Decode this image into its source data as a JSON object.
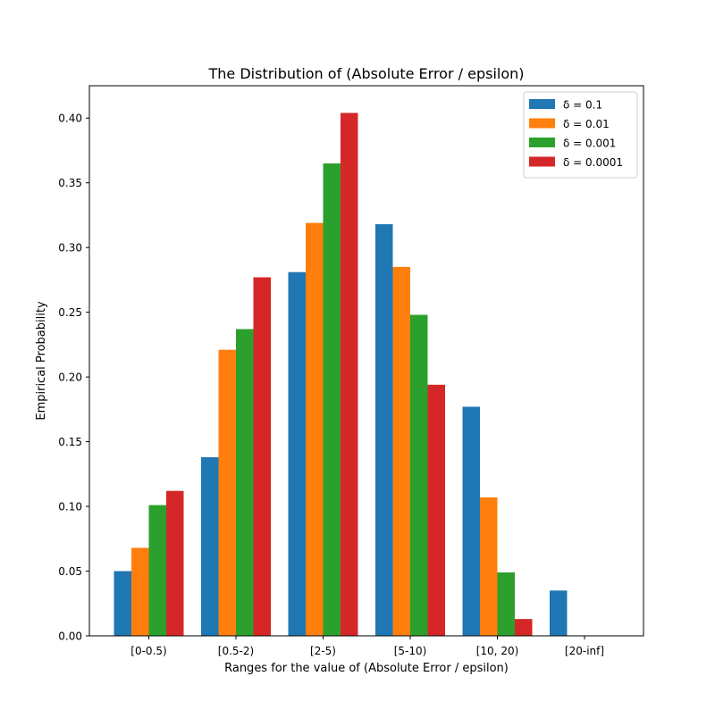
{
  "chart_data": {
    "type": "bar",
    "title": "The Distribution of (Absolute Error / epsilon)",
    "xlabel": "Ranges for the value of (Absolute Error / epsilon)",
    "ylabel": "Empirical Probability",
    "categories": [
      "[0-0.5)",
      "[0.5-2)",
      "[2-5)",
      "[5-10)",
      "[10, 20)",
      "[20-inf]"
    ],
    "ylim": [
      0,
      0.425
    ],
    "yticks": [
      "0.00",
      "0.05",
      "0.10",
      "0.15",
      "0.20",
      "0.25",
      "0.30",
      "0.35",
      "0.40"
    ],
    "legend_position": "top-right",
    "grid": false,
    "series": [
      {
        "name": "δ = 0.1",
        "color": "#1f77b4",
        "values": [
          0.05,
          0.138,
          0.281,
          0.318,
          0.177,
          0.035
        ]
      },
      {
        "name": "δ = 0.01",
        "color": "#ff7f0e",
        "values": [
          0.068,
          0.221,
          0.319,
          0.285,
          0.107,
          0.0
        ]
      },
      {
        "name": "δ = 0.001",
        "color": "#2ca02c",
        "values": [
          0.101,
          0.237,
          0.365,
          0.248,
          0.049,
          0.0
        ]
      },
      {
        "name": "δ = 0.0001",
        "color": "#d62728",
        "values": [
          0.112,
          0.277,
          0.404,
          0.194,
          0.013,
          0.0
        ]
      }
    ]
  }
}
